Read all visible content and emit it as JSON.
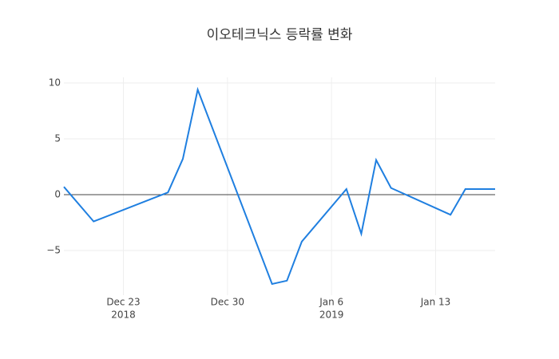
{
  "chart_data": {
    "type": "line",
    "title": "이오테크닉스 등락률 변화",
    "x": [
      "2018-12-19",
      "2018-12-21",
      "2018-12-26",
      "2018-12-27",
      "2018-12-28",
      "2019-01-02",
      "2019-01-03",
      "2019-01-04",
      "2019-01-07",
      "2019-01-08",
      "2019-01-09",
      "2019-01-10",
      "2019-01-14",
      "2019-01-15",
      "2019-01-17"
    ],
    "series": [
      {
        "color": "#1f7fe0",
        "values": [
          0.7,
          -2.4,
          0.2,
          3.2,
          9.4,
          -8.0,
          -7.7,
          -4.2,
          0.5,
          -3.5,
          3.1,
          0.6,
          -1.8,
          0.5,
          0.5
        ]
      }
    ],
    "xlim": [
      "2018-12-19",
      "2019-01-17"
    ],
    "xticks": [
      {
        "value": "2018-12-23",
        "label": "Dec 23",
        "year": "2018"
      },
      {
        "value": "2018-12-30",
        "label": "Dec 30"
      },
      {
        "value": "2019-01-06",
        "label": "Jan 6",
        "year": "2019"
      },
      {
        "value": "2019-01-13",
        "label": "Jan 13"
      }
    ],
    "ylim": [
      -9,
      10.5
    ],
    "yticks": [
      {
        "value": -5,
        "label": "−5"
      },
      0,
      5,
      10
    ],
    "grid": true,
    "zeroline": true
  }
}
